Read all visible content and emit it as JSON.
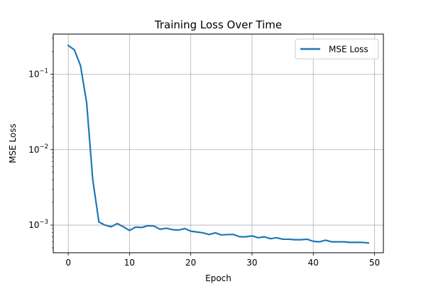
{
  "chart_data": {
    "type": "line",
    "title": "Training Loss Over Time",
    "xlabel": "Epoch",
    "ylabel": "MSE Loss",
    "yscale": "log",
    "xlim": [
      -2.45,
      51.45
    ],
    "ylim": [
      0.00043,
      0.34
    ],
    "xticks": [
      0,
      10,
      20,
      30,
      40,
      50
    ],
    "xtick_labels": [
      "0",
      "10",
      "20",
      "30",
      "40",
      "50"
    ],
    "yticks": [
      0.001,
      0.01,
      0.1
    ],
    "ytick_base": "10",
    "ytick_exponents": [
      "−3",
      "−2",
      "−1"
    ],
    "grid": true,
    "legend_position": "top-right",
    "series": [
      {
        "name": "MSE Loss",
        "color": "#1f77b4",
        "x": [
          0,
          1,
          2,
          3,
          4,
          5,
          6,
          7,
          8,
          9,
          10,
          11,
          12,
          13,
          14,
          15,
          16,
          17,
          18,
          19,
          20,
          21,
          22,
          23,
          24,
          25,
          26,
          27,
          28,
          29,
          30,
          31,
          32,
          33,
          34,
          35,
          36,
          37,
          38,
          39,
          40,
          41,
          42,
          43,
          44,
          45,
          46,
          47,
          48,
          49
        ],
        "y": [
          0.24,
          0.21,
          0.13,
          0.042,
          0.004,
          0.0011,
          0.001,
          0.00095,
          0.00105,
          0.00095,
          0.00085,
          0.00094,
          0.00093,
          0.00098,
          0.00097,
          0.00088,
          0.00091,
          0.00087,
          0.00086,
          0.0009,
          0.00083,
          0.00081,
          0.00079,
          0.00075,
          0.00079,
          0.00074,
          0.00075,
          0.00075,
          0.0007,
          0.0007,
          0.00072,
          0.00068,
          0.0007,
          0.00066,
          0.00068,
          0.00065,
          0.00065,
          0.00064,
          0.00064,
          0.00065,
          0.00061,
          0.0006,
          0.00063,
          0.0006,
          0.0006,
          0.0006,
          0.00059,
          0.00059,
          0.00059,
          0.00058
        ]
      }
    ]
  }
}
